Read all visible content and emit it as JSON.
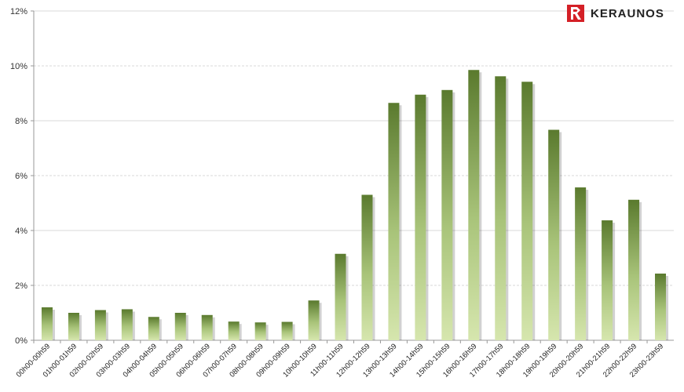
{
  "brand": {
    "name": "KERAUNOS",
    "logo_icon": "keraunos-logo-icon",
    "color": "#d42027"
  },
  "chart_data": {
    "type": "bar",
    "title": "",
    "xlabel": "",
    "ylabel": "",
    "ylim": [
      0,
      12
    ],
    "yticks": [
      "0%",
      "2%",
      "4%",
      "6%",
      "8%",
      "10%",
      "12%"
    ],
    "grid": true,
    "bar_color_top": "#5a7a2e",
    "bar_color_bottom": "#d6e6ae",
    "categories": [
      "00h00-00h59",
      "01h00-01h59",
      "02h00-02h59",
      "03h00-03h59",
      "04h00-04h59",
      "05h00-05h59",
      "06h00-06h59",
      "07h00-07h59",
      "08h00-08h59",
      "09h00-09h59",
      "10h00-10h59",
      "11h00-11h59",
      "12h00-12h59",
      "13h00-13h59",
      "14h00-14h59",
      "15h00-15h59",
      "16h00-16h59",
      "17h00-17h59",
      "18h00-18h59",
      "19h00-19h59",
      "20h00-20h59",
      "21h00-21h59",
      "22h00-22h59",
      "23h00-23h59"
    ],
    "values": [
      1.2,
      1.0,
      1.1,
      1.13,
      0.85,
      1.0,
      0.92,
      0.68,
      0.65,
      0.67,
      1.45,
      3.15,
      5.3,
      8.65,
      8.95,
      9.12,
      9.85,
      9.62,
      9.42,
      7.67,
      5.57,
      4.37,
      5.12,
      2.43
    ]
  }
}
